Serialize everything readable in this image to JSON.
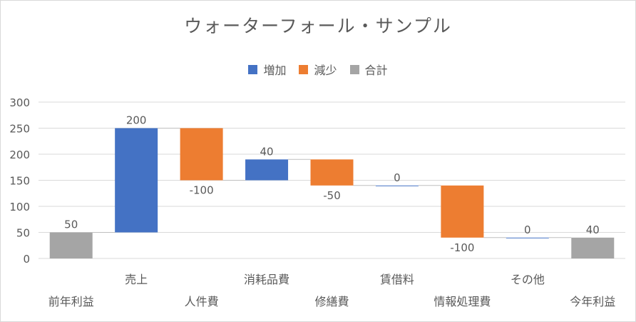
{
  "chart_data": {
    "type": "waterfall",
    "title": "ウォーターフォール・サンプル",
    "legend": [
      {
        "name": "増加",
        "color": "#4472C4"
      },
      {
        "name": "減少",
        "color": "#ED7D31"
      },
      {
        "name": "合計",
        "color": "#A5A5A5"
      }
    ],
    "legend_position": "top",
    "categories": [
      "前年利益",
      "売上",
      "人件費",
      "消耗品費",
      "修繕費",
      "賃借料",
      "情報処理費",
      "その他",
      "今年利益"
    ],
    "values": [
      50,
      200,
      -100,
      40,
      -50,
      0,
      -100,
      0,
      40
    ],
    "kinds": [
      "total",
      "change",
      "change",
      "change",
      "change",
      "change",
      "change",
      "change",
      "total"
    ],
    "ylim": [
      0,
      300
    ],
    "yticks": [
      0,
      50,
      100,
      150,
      200,
      250,
      300
    ],
    "grid": true
  }
}
